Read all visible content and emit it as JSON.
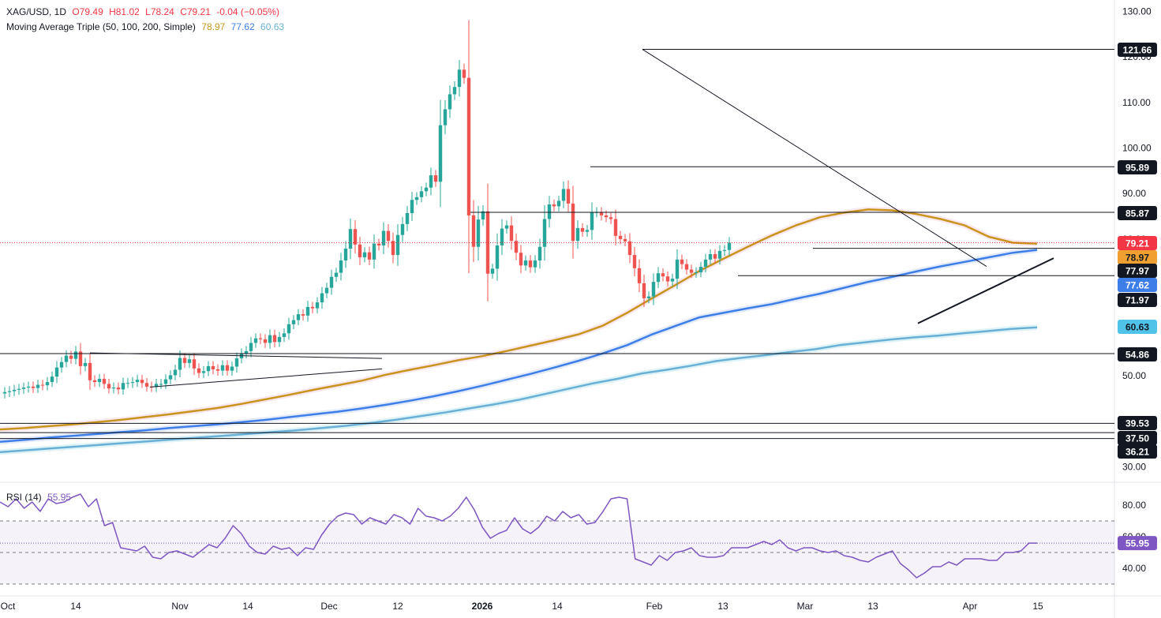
{
  "header": {
    "symbol": "XAG/USD, 1D",
    "open": "O79.49",
    "high": "H81.02",
    "low": "L78.24",
    "close": "C79.21",
    "change": "-0.04 (−0.05%)",
    "ma_title": "Moving Average Triple (50, 100, 200, Simple)",
    "ma50_value": "78.97",
    "ma100_value": "77.62",
    "ma200_value": "60.63",
    "rsi_title": "RSI (14)",
    "rsi_value": "55.95"
  },
  "colors": {
    "up": "#26a69a",
    "down": "#ef5350",
    "ma50": "#c9941e",
    "ma100": "#3d7ee8",
    "ma200": "#6ab0d6",
    "rsi": "#7e57c2",
    "last_price": "#f23645"
  },
  "chart_data": [
    {
      "type": "candlestick",
      "title": "XAG/USD, 1D",
      "y_ticks": [
        30,
        40,
        50,
        60,
        70,
        80,
        90,
        100,
        110,
        120,
        130
      ],
      "y_tick_labels": [
        "30.00",
        "40.00",
        "50.00",
        "60.00",
        "70.00",
        "80.00",
        "90.00",
        "100.00",
        "110.00",
        "120.00",
        "130.00"
      ],
      "ylim": [
        27.5,
        132.5
      ],
      "x_tick_labels": [
        "Oct",
        "14",
        "Nov",
        "14",
        "Dec",
        "12",
        "2026",
        "14",
        "Feb",
        "13",
        "Mar",
        "13",
        "Apr",
        "15"
      ],
      "price_labels": [
        {
          "value": 121.66,
          "text": "121.66",
          "style": "level"
        },
        {
          "value": 95.89,
          "text": "95.89",
          "style": "level"
        },
        {
          "value": 85.87,
          "text": "85.87",
          "style": "level"
        },
        {
          "value": 79.21,
          "text": "79.21",
          "style": "last"
        },
        {
          "value": 78.97,
          "text": "78.97",
          "style": "ma50"
        },
        {
          "value": 77.97,
          "text": "77.97",
          "style": "level"
        },
        {
          "value": 77.62,
          "text": "77.62",
          "style": "ma100"
        },
        {
          "value": 71.97,
          "text": "71.97",
          "style": "level"
        },
        {
          "value": 60.63,
          "text": "60.63",
          "style": "ma200"
        },
        {
          "value": 54.86,
          "text": "54.86",
          "style": "level"
        },
        {
          "value": 39.53,
          "text": "39.53",
          "style": "level"
        },
        {
          "value": 37.5,
          "text": "37.50",
          "style": "level"
        },
        {
          "value": 36.21,
          "text": "36.21",
          "style": "level"
        }
      ],
      "close_series": [
        46.4,
        46.6,
        46.9,
        47.1,
        47.4,
        47.6,
        47.3,
        48.0,
        47.9,
        48.6,
        49.8,
        51.8,
        53.0,
        54.4,
        53.7,
        55.3,
        52.1,
        52.8,
        49.0,
        48.6,
        49.3,
        48.2,
        47.2,
        47.4,
        47.0,
        48.4,
        48.4,
        48.6,
        49.1,
        48.4,
        47.6,
        47.5,
        48.2,
        48.2,
        49.2,
        50.1,
        51.3,
        53.9,
        52.8,
        53.6,
        51.6,
        50.6,
        51.0,
        52.1,
        51.4,
        51.1,
        52.3,
        51.1,
        52.0,
        53.8,
        54.9,
        55.4,
        57.2,
        58.2,
        58.0,
        57.2,
        58.9,
        57.4,
        58.5,
        59.3,
        61.3,
        62.2,
        63.5,
        63.2,
        65.1,
        64.8,
        66.1,
        68.1,
        69.3,
        71.7,
        72.6,
        75.3,
        77.9,
        82.2,
        78.8,
        76.0,
        77.1,
        75.5,
        79.0,
        78.6,
        81.8,
        79.6,
        76.5,
        80.9,
        83.3,
        85.7,
        88.6,
        89.2,
        90.5,
        91.3,
        94.0,
        92.6,
        105.0,
        108.5,
        111.8,
        113.4,
        117.2,
        115.4,
        85.2,
        78.3,
        84.3,
        86.1,
        72.4,
        73.5,
        78.6,
        82.3,
        83.0,
        79.6,
        77.0,
        74.2,
        75.3,
        73.8,
        75.3,
        78.3,
        84.4,
        87.6,
        87.2,
        88.4,
        91.0,
        87.8,
        79.6,
        82.4,
        81.6,
        82.0,
        85.9,
        85.9,
        85.2,
        84.8,
        84.4,
        80.7,
        80.0,
        79.5,
        76.5,
        73.6,
        70.3,
        67.0,
        67.4,
        70.6,
        72.5,
        71.8,
        70.7,
        71.3,
        75.5,
        74.5,
        73.3,
        72.6,
        72.7,
        73.9,
        75.5,
        76.7,
        75.7,
        77.4,
        77.6,
        79.2
      ],
      "series": [
        {
          "name": "MA 50",
          "values": [
            38.2,
            38.5,
            38.9,
            39.3,
            39.8,
            40.3,
            40.9,
            41.5,
            42.2,
            42.9,
            43.8,
            44.8,
            45.8,
            46.9,
            47.9,
            48.9,
            50.2,
            51.3,
            52.3,
            53.4,
            54.3,
            55.4,
            56.6,
            57.8,
            59.1,
            61.0,
            63.8,
            66.9,
            69.9,
            73.0,
            75.7,
            78.3,
            80.8,
            83.0,
            84.8,
            85.8,
            86.5,
            86.3,
            85.5,
            84.4,
            83.0,
            80.5,
            79.2,
            78.97
          ]
        },
        {
          "name": "MA 100",
          "values": [
            35.5,
            35.9,
            36.4,
            36.8,
            37.2,
            37.6,
            38.0,
            38.5,
            38.9,
            39.3,
            39.8,
            40.3,
            40.9,
            41.5,
            42.1,
            42.8,
            43.6,
            44.5,
            45.5,
            46.6,
            47.8,
            49.1,
            50.4,
            51.8,
            53.3,
            54.9,
            56.7,
            59.0,
            60.9,
            62.8,
            63.8,
            64.8,
            65.7,
            66.9,
            68.0,
            69.3,
            70.6,
            71.7,
            72.9,
            74.0,
            75.0,
            76.0,
            77.0,
            77.62
          ]
        },
        {
          "name": "MA 200",
          "values": [
            33.2,
            33.6,
            34.0,
            34.4,
            34.8,
            35.2,
            35.6,
            36.0,
            36.4,
            36.8,
            37.2,
            37.6,
            38.0,
            38.5,
            39.0,
            39.6,
            40.3,
            41.1,
            41.9,
            42.8,
            43.7,
            44.7,
            45.9,
            47.1,
            48.3,
            49.3,
            50.5,
            51.3,
            52.2,
            53.2,
            53.9,
            54.5,
            55.2,
            55.8,
            56.7,
            57.3,
            57.9,
            58.4,
            58.8,
            59.3,
            59.8,
            60.3,
            60.63
          ]
        }
      ]
    },
    {
      "type": "line",
      "title": "RSI (14)",
      "y_ticks": [
        40,
        60,
        80
      ],
      "y_tick_labels": [
        "40.00",
        "60.00",
        "80.00"
      ],
      "ylim": [
        28,
        90
      ],
      "bands": [
        30,
        50,
        70
      ],
      "series": [
        {
          "name": "RSI",
          "values": [
            82,
            79,
            84,
            78,
            82,
            76,
            84,
            81,
            82,
            85,
            87,
            79,
            84,
            67,
            69,
            53,
            52,
            51,
            54,
            47,
            46,
            50,
            51,
            49,
            47,
            51,
            55,
            53,
            59,
            67,
            62,
            54,
            50,
            49,
            54,
            52,
            53,
            48,
            53,
            52,
            61,
            68,
            73,
            75,
            74,
            68,
            72,
            70,
            68,
            74,
            72,
            68,
            78,
            73,
            72,
            70,
            73,
            78,
            85,
            77,
            66,
            59,
            62,
            64,
            72,
            65,
            62,
            66,
            73,
            70,
            76,
            72,
            74,
            68,
            69,
            76,
            84,
            85,
            84,
            46,
            44,
            42,
            48,
            45,
            50,
            51,
            53,
            48,
            47,
            47,
            48,
            53,
            53,
            53,
            55,
            57,
            55,
            58,
            53,
            51,
            53,
            53,
            51,
            50,
            51,
            48,
            47,
            45,
            44,
            47,
            49,
            51,
            43,
            39,
            34,
            37,
            41,
            41,
            44,
            42,
            46,
            46,
            46,
            45,
            45,
            50,
            50,
            51,
            55.95,
            55.95
          ]
        }
      ]
    }
  ]
}
